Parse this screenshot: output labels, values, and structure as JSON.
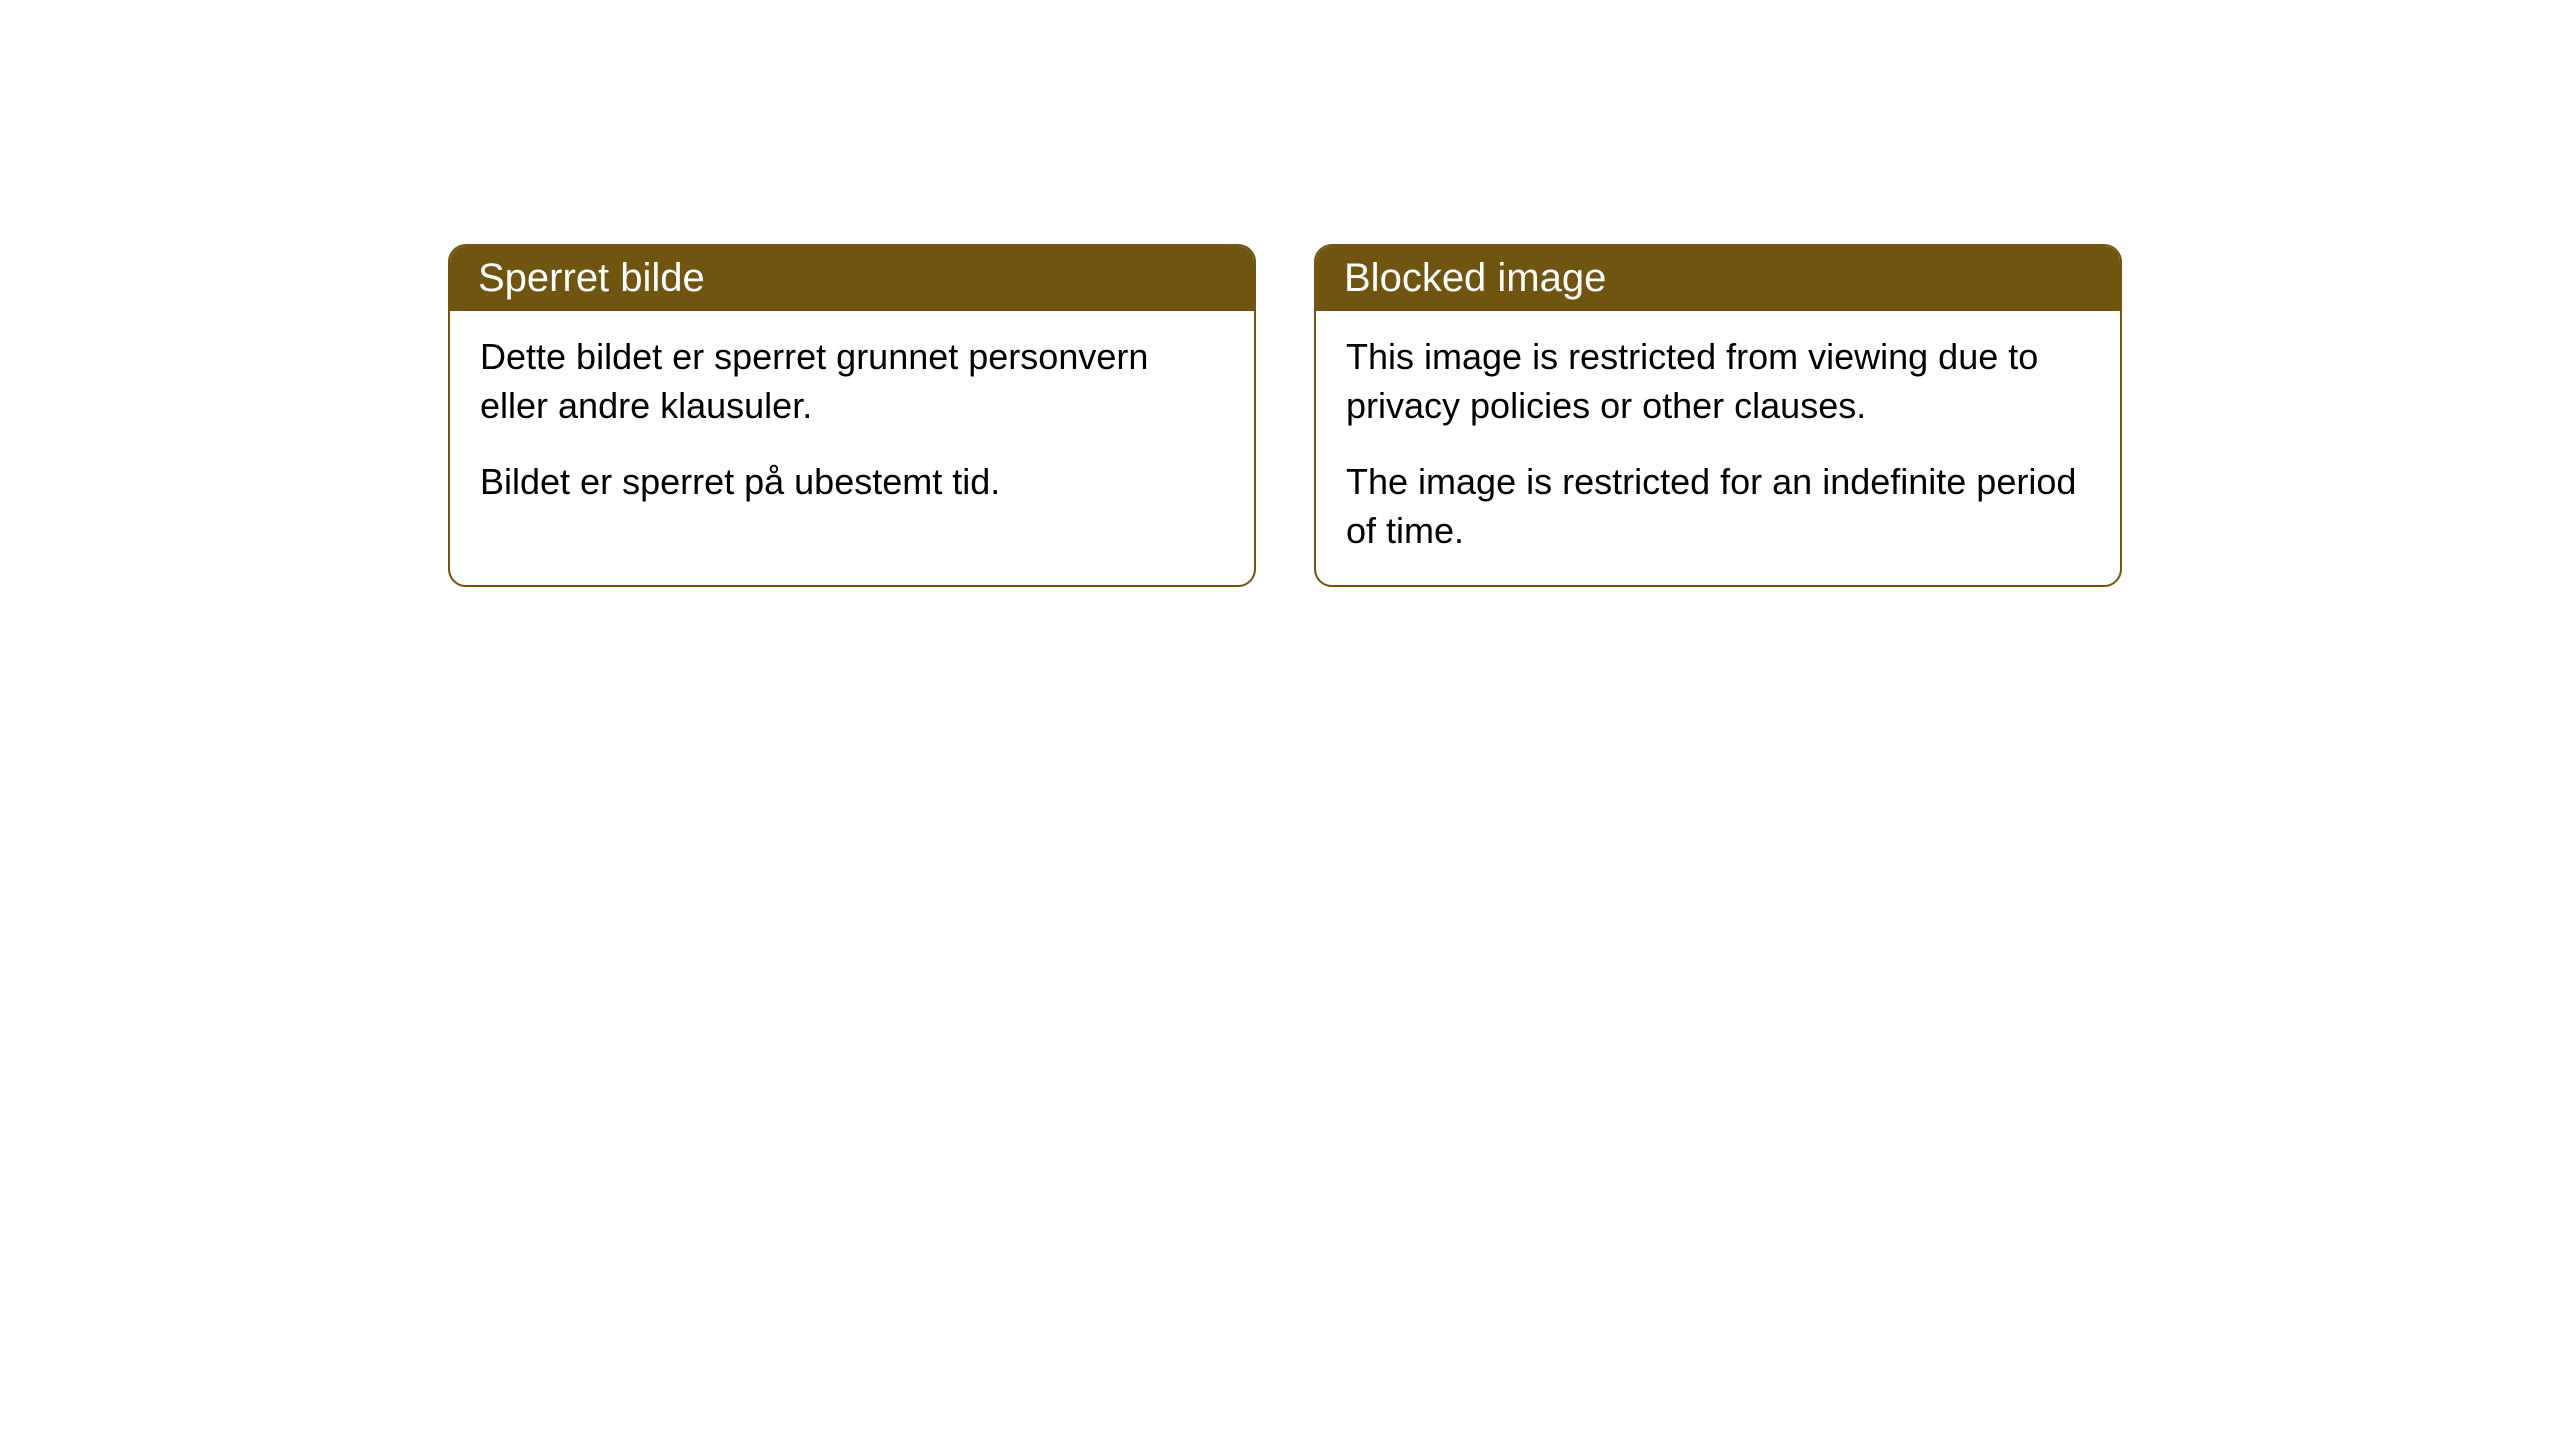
{
  "cards": [
    {
      "title": "Sperret bilde",
      "paragraph1": "Dette bildet er sperret grunnet personvern eller andre klausuler.",
      "paragraph2": "Bildet er sperret på ubestemt tid."
    },
    {
      "title": "Blocked image",
      "paragraph1": "This image is restricted from viewing due to privacy policies or other clauses.",
      "paragraph2": "The image is restricted for an indefinite period of time."
    }
  ],
  "styling": {
    "header_background_color": "#6f5510",
    "header_text_color": "#ffffff",
    "border_color": "#6f5510",
    "body_background_color": "#ffffff",
    "body_text_color": "#000000",
    "border_radius": 18,
    "header_fontsize": 40,
    "body_fontsize": 36
  }
}
